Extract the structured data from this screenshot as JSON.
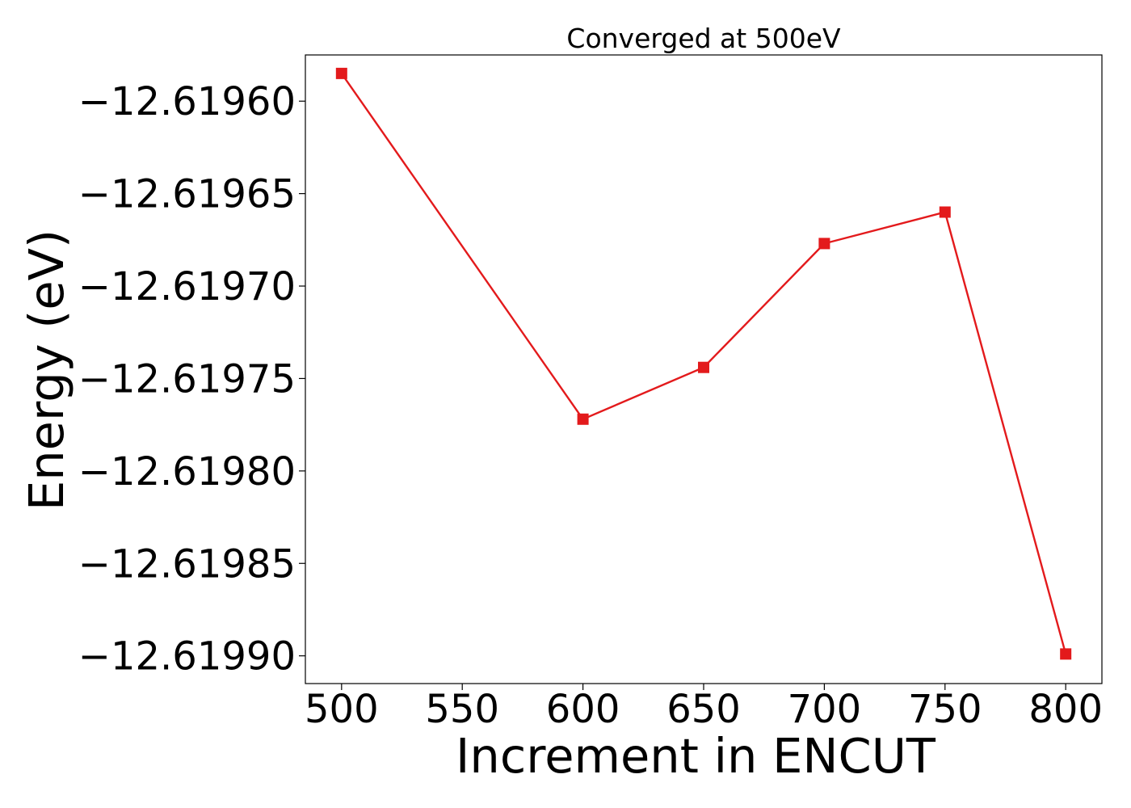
{
  "chart_data": {
    "type": "line",
    "title": "Converged at 500eV",
    "xlabel": "Increment in ENCUT",
    "ylabel": "Energy (eV)",
    "x_ticks": [
      "500",
      "550",
      "600",
      "650",
      "700",
      "750",
      "800"
    ],
    "x_tick_values": [
      500,
      550,
      600,
      650,
      700,
      750,
      800
    ],
    "y_ticks": [
      "−12.61960",
      "−12.61965",
      "−12.61970",
      "−12.61975",
      "−12.61980",
      "−12.61985",
      "−12.61990"
    ],
    "y_tick_values": [
      -12.6196,
      -12.61965,
      -12.6197,
      -12.61975,
      -12.6198,
      -12.61985,
      -12.6199
    ],
    "xlim": [
      485,
      815
    ],
    "ylim": [
      -12.619915,
      -12.619575
    ],
    "series": [
      {
        "color": "#e31a1c",
        "marker": "square",
        "x": [
          500,
          600,
          650,
          700,
          750,
          800
        ],
        "y": [
          -12.619585,
          -12.619772,
          -12.619744,
          -12.619677,
          -12.61966,
          -12.619899
        ]
      }
    ],
    "grid": false,
    "legend": "none"
  }
}
